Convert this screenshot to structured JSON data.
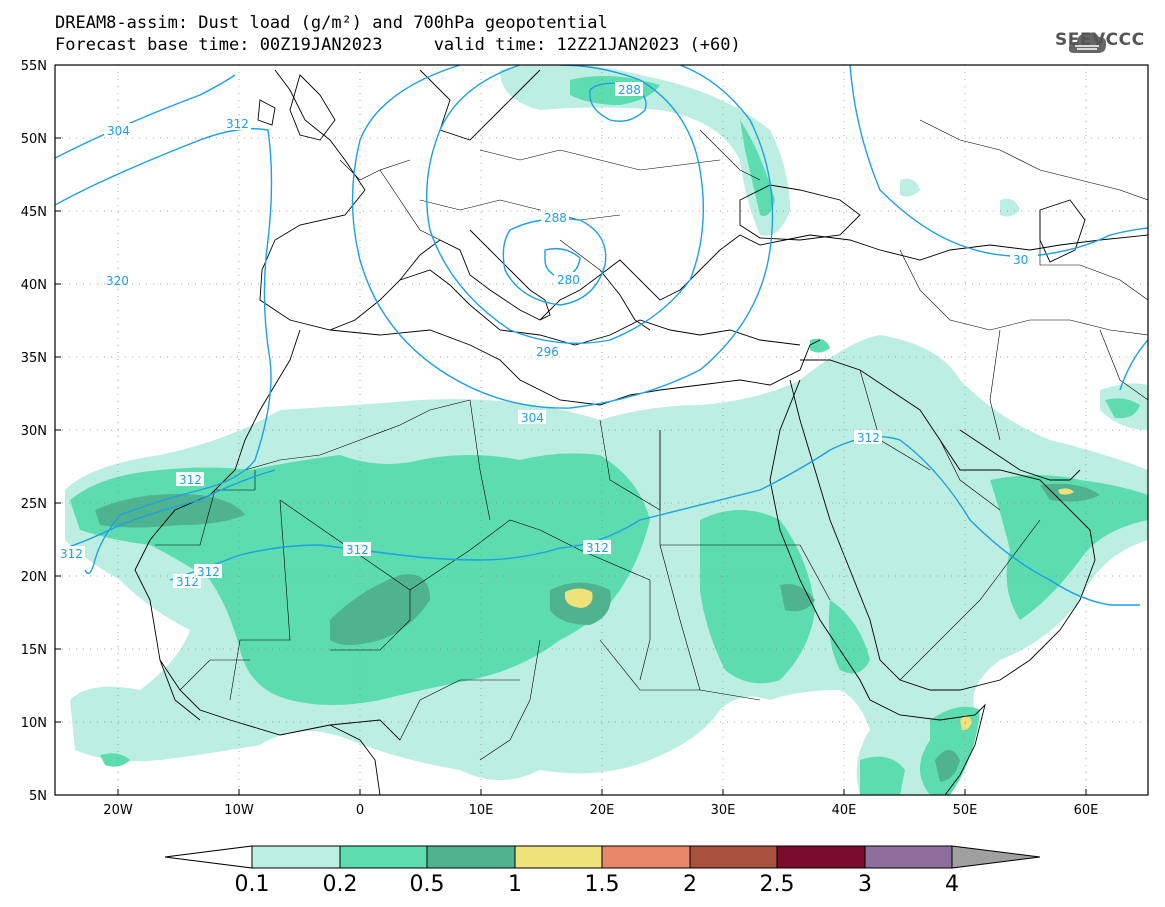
{
  "header": {
    "line1": "DREAM8-assim: Dust load (g/m²) and 700hPa geopotential",
    "line2": "Forecast base time: 00Z19JAN2023     valid time: 12Z21JAN2023 (+60)"
  },
  "logo": {
    "text": "SEEVCCC",
    "icon": "cloud-icon"
  },
  "map": {
    "lat_labels": [
      "55N",
      "50N",
      "45N",
      "40N",
      "35N",
      "30N",
      "25N",
      "20N",
      "15N",
      "10N",
      "5N"
    ],
    "lon_labels": [
      "20W",
      "10W",
      "0",
      "10E",
      "20E",
      "30E",
      "40E",
      "50E",
      "60E"
    ],
    "contour_labels": [
      "288",
      "304",
      "312",
      "320",
      "288",
      "280",
      "296",
      "304",
      "312",
      "312",
      "312",
      "312",
      "312",
      "312",
      "312",
      "30"
    ],
    "colors": {
      "c1": "#bdeee2",
      "c2": "#5ddcb0",
      "c3": "#4fb38f",
      "c4": "#f0e27a",
      "c5": "#e9876a",
      "c6": "#a9503f",
      "c7": "#7a0c2c",
      "c8": "#8e6f9c",
      "over": "#a0a0a0",
      "under": "#ffffff",
      "contour": "#1f9fe6",
      "border": "#000000"
    }
  },
  "colorbar": {
    "labels": [
      "0.1",
      "0.2",
      "0.5",
      "1",
      "1.5",
      "2",
      "2.5",
      "3",
      "4"
    ]
  }
}
